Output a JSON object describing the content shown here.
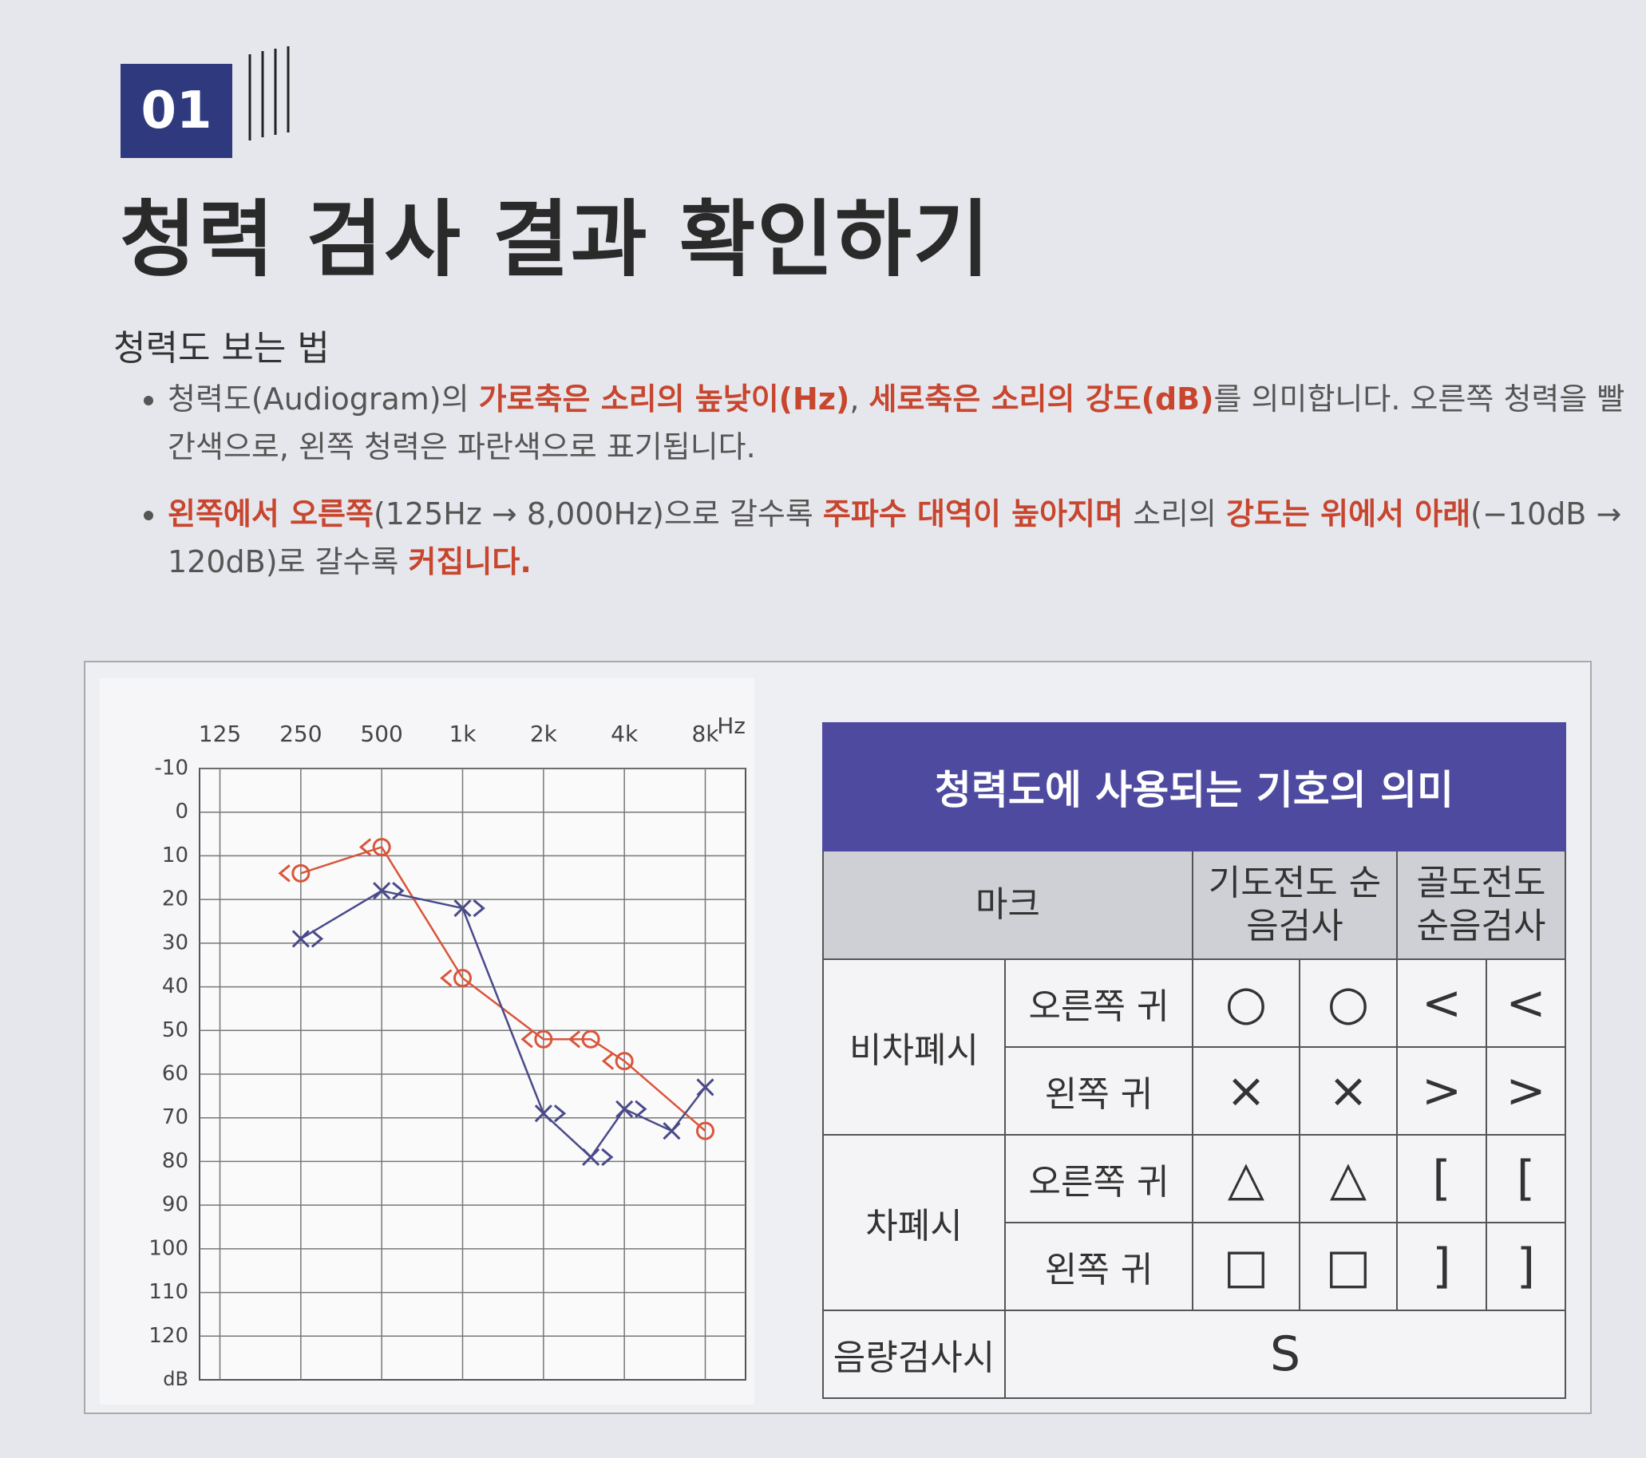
{
  "header": {
    "number": "01",
    "title": "청력 검사 결과 확인하기"
  },
  "section": {
    "title": "청력도 보는 법",
    "bullets": [
      [
        {
          "text": "청력도(Audiogram)의 "
        },
        {
          "text": "가로축은 소리의 높낮이(Hz)",
          "color": "#c8452e"
        },
        {
          "text": ", "
        },
        {
          "text": "세로축은 소리의 강도(dB)",
          "color": "#c8452e"
        },
        {
          "text": "를 의미합니다. 오른쪽 청력을 빨간색으로, 왼쪽 청력은 파란색으로 표기됩니다."
        }
      ],
      [
        {
          "text": "왼쪽에서 오른쪽",
          "color": "#c8452e"
        },
        {
          "text": "(125Hz → 8,000Hz)으로 갈수록 "
        },
        {
          "text": "주파수 대역이 높아지며",
          "color": "#c8452e"
        },
        {
          "text": " 소리의 "
        },
        {
          "text": "강도는 위에서 아래",
          "color": "#c8452e"
        },
        {
          "text": "(−10dB → 120dB)로 갈수록 "
        },
        {
          "text": "커집니다.",
          "color": "#c8452e"
        }
      ]
    ]
  },
  "chart_data": {
    "type": "line",
    "x_unit": "Hz",
    "y_unit": "dB",
    "xscale": "log",
    "xlim": [
      105,
      11300
    ],
    "xticks": [
      125,
      250,
      500,
      {
        "value": 1000,
        "label": "1k"
      },
      {
        "value": 2000,
        "label": "2k"
      },
      {
        "value": 4000,
        "label": "4k"
      },
      {
        "value": 8000,
        "label": "8k"
      }
    ],
    "ylim": [
      -10,
      130
    ],
    "y_inverted": true,
    "yticks": [
      -10,
      0,
      10,
      20,
      30,
      40,
      50,
      60,
      70,
      80,
      90,
      100,
      110,
      120
    ],
    "grid": true,
    "series": [
      {
        "color": "#d9553b",
        "marker": "circle",
        "connected": true,
        "x": [
          250,
          500,
          1000,
          2000,
          3000,
          4000,
          8000
        ],
        "values": [
          14,
          8,
          38,
          52,
          52,
          57,
          73
        ]
      },
      {
        "color": "#d9553b",
        "marker": "less-than",
        "connected": false,
        "x": [
          250,
          500,
          1000,
          2000,
          3000,
          4000,
          8000
        ],
        "values": [
          14,
          8,
          38,
          52,
          52,
          57,
          null
        ]
      },
      {
        "color": "#4a4a8a",
        "marker": "cross",
        "connected": true,
        "x": [
          250,
          500,
          1000,
          2000,
          3000,
          4000,
          6000,
          8000
        ],
        "values": [
          29,
          18,
          22,
          69,
          79,
          68,
          73,
          63
        ]
      },
      {
        "color": "#4a4a8a",
        "marker": "greater-than",
        "connected": false,
        "x": [
          250,
          500,
          1000,
          2000,
          3000,
          4000,
          6000,
          8000
        ],
        "values": [
          29,
          18,
          22,
          69,
          79,
          68,
          null,
          null
        ]
      }
    ]
  },
  "table": {
    "title": "청력도에 사용되는 기호의 의미",
    "header": [
      "마크",
      "기도전도 순음검사",
      "골도전도 순음검사"
    ],
    "rows": [
      {
        "group": "비차폐시",
        "ear": "오른쪽 귀",
        "marks": [
          "○",
          "○",
          "<",
          "<"
        ]
      },
      {
        "ear": "왼쪽 귀",
        "marks": [
          "×",
          "×",
          ">",
          ">"
        ]
      },
      {
        "group": "차폐시",
        "ear": "오른쪽 귀",
        "marks": [
          "△",
          "△",
          "[",
          "["
        ]
      },
      {
        "ear": "왼쪽 귀",
        "marks": [
          "□",
          "□",
          "]",
          "]"
        ]
      },
      {
        "group": "음량검사시",
        "marks": [
          "S"
        ]
      }
    ]
  }
}
